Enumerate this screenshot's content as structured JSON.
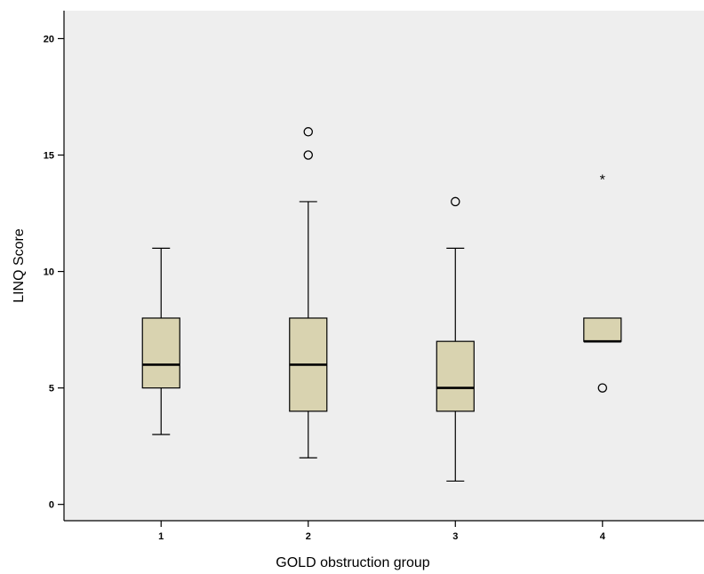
{
  "chart_data": {
    "type": "boxplot",
    "title": "",
    "xlabel": "GOLD obstruction group",
    "ylabel": "LINQ Score",
    "categories": [
      "1",
      "2",
      "3",
      "4"
    ],
    "yticks": [
      0,
      5,
      10,
      15,
      20
    ],
    "ylim": [
      -0.7,
      21.2
    ],
    "grid": false,
    "plot_background": "#eeeeee",
    "box_fill": "#d9d3b0",
    "boxes": [
      {
        "group": "1",
        "whisker_low": 3,
        "q1": 5,
        "median": 6,
        "q3": 8,
        "whisker_high": 11,
        "outliers": [],
        "extremes": []
      },
      {
        "group": "2",
        "whisker_low": 2,
        "q1": 4,
        "median": 6,
        "q3": 8,
        "whisker_high": 13,
        "outliers": [
          15,
          16
        ],
        "extremes": []
      },
      {
        "group": "3",
        "whisker_low": 1,
        "q1": 4,
        "median": 5,
        "q3": 7,
        "whisker_high": 11,
        "outliers": [
          13
        ],
        "extremes": []
      },
      {
        "group": "4",
        "whisker_low": 7,
        "q1": 7,
        "median": 7,
        "q3": 8,
        "whisker_high": 8,
        "outliers": [
          5
        ],
        "extremes": [
          14
        ]
      }
    ]
  }
}
